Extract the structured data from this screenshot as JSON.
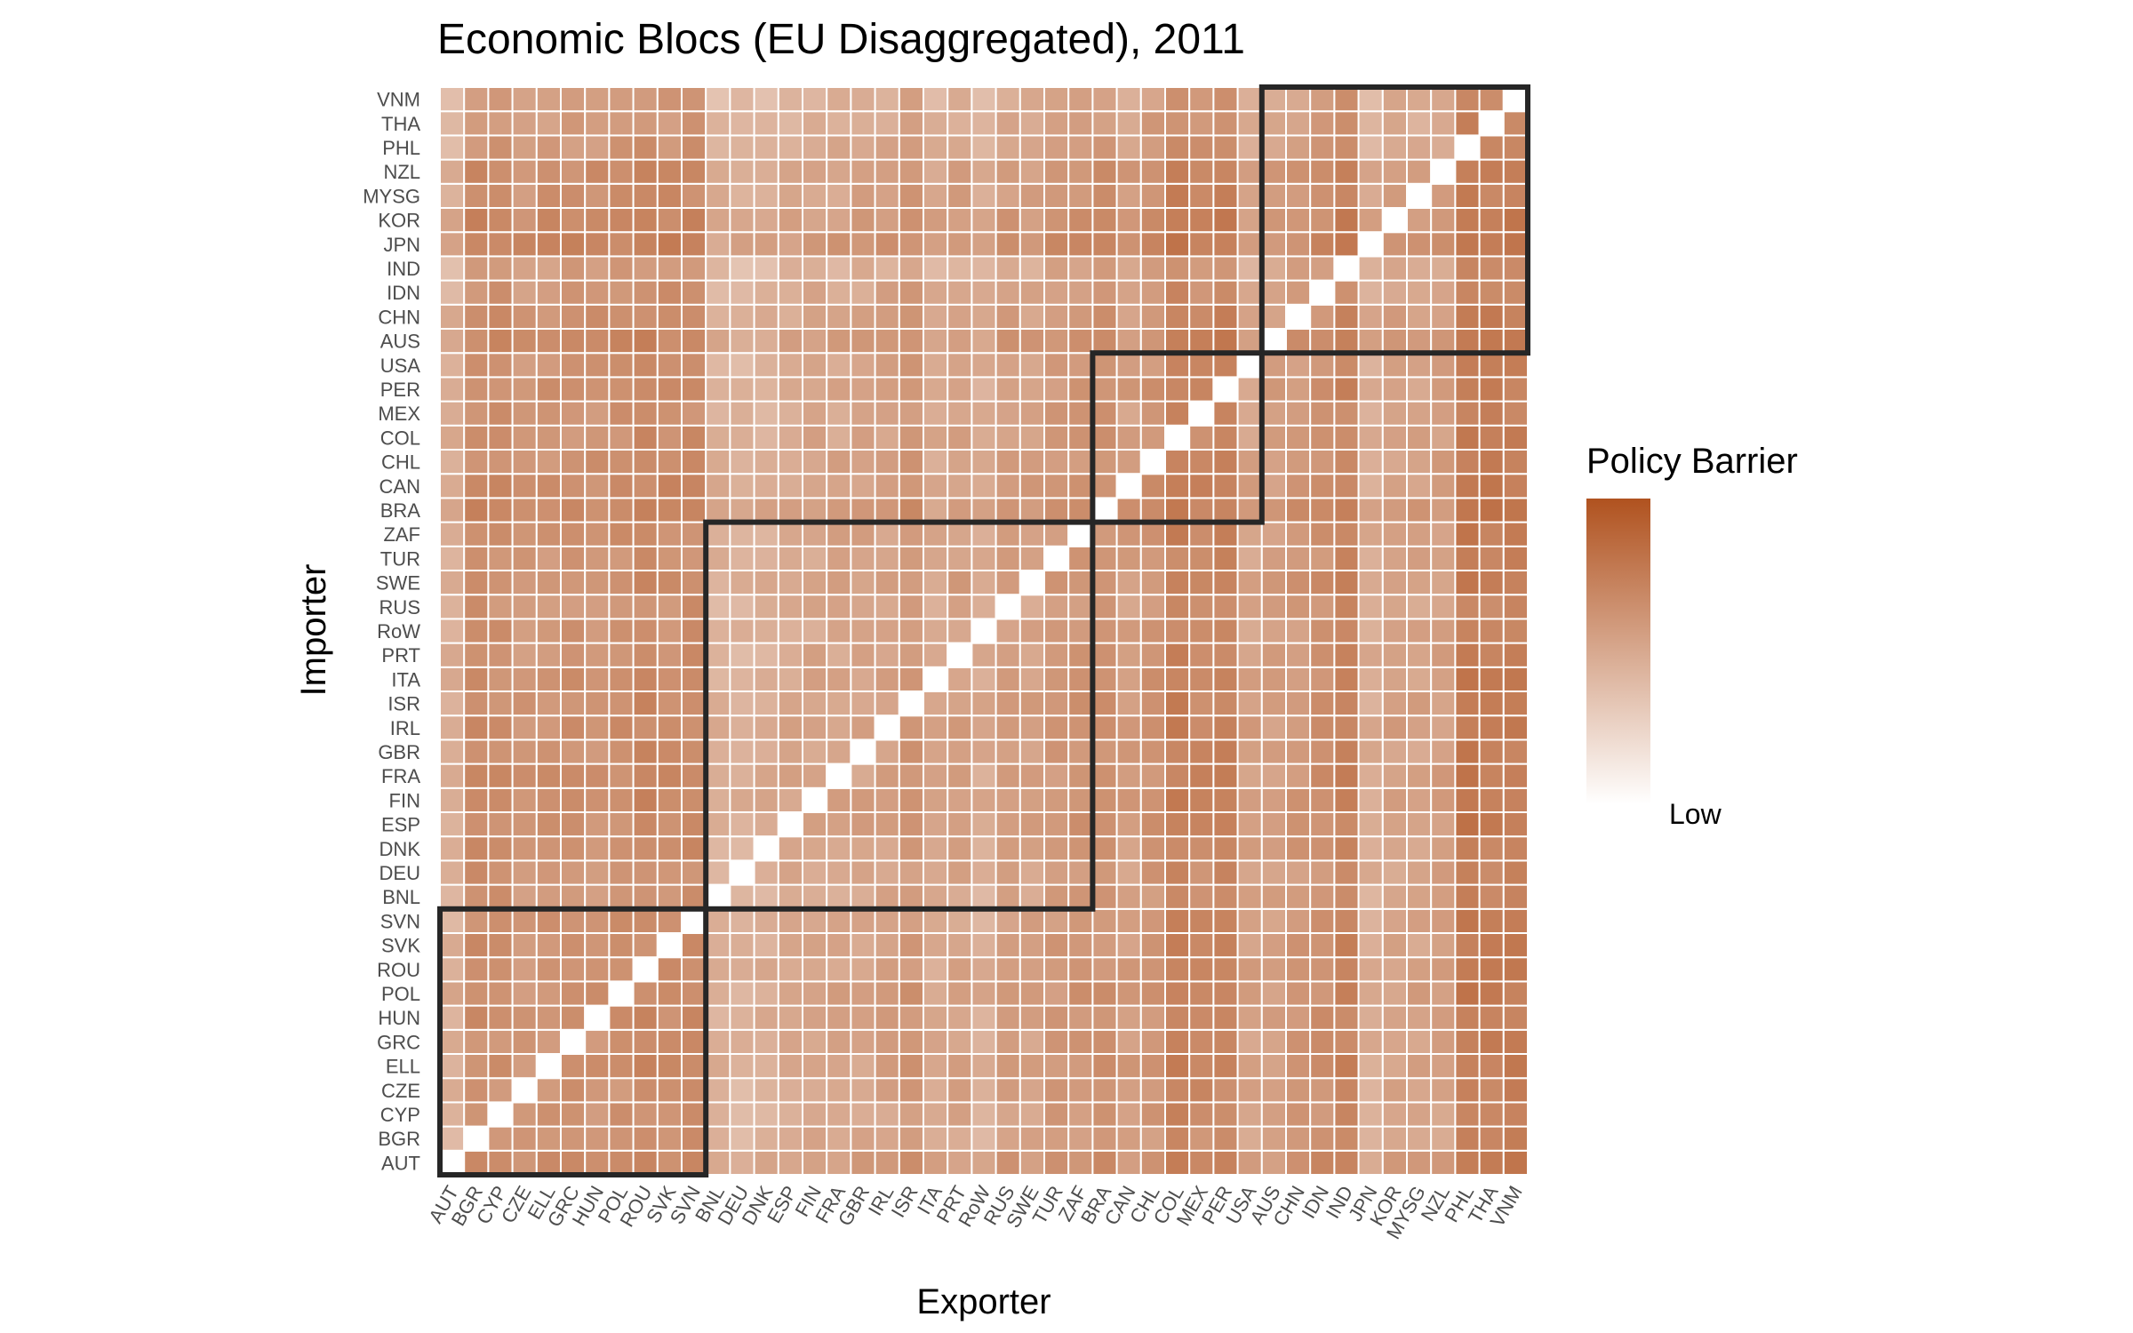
{
  "chart_data": {
    "type": "heatmap",
    "title": "Economic Blocs (EU Disaggregated), 2011",
    "xlabel": "Exporter",
    "ylabel": "Importer",
    "legend": {
      "title": "Policy Barrier",
      "low_label": "Low",
      "placement": "right"
    },
    "colors": {
      "low": "#ffffff",
      "high": "#b0521f",
      "cell_border": "#ffffff",
      "bloc_outline": "#262626"
    },
    "countries": [
      "AUT",
      "BGR",
      "CYP",
      "CZE",
      "ELL",
      "GRC",
      "HUN",
      "POL",
      "ROU",
      "SVK",
      "SVN",
      "BNL",
      "DEU",
      "DNK",
      "ESP",
      "FIN",
      "FRA",
      "GBR",
      "IRL",
      "ISR",
      "ITA",
      "PRT",
      "RoW",
      "RUS",
      "SWE",
      "TUR",
      "ZAF",
      "BRA",
      "CAN",
      "CHL",
      "COL",
      "MEX",
      "PER",
      "USA",
      "AUS",
      "CHN",
      "IDN",
      "IND",
      "JPN",
      "KOR",
      "MYSG",
      "NZL",
      "PHL",
      "THA",
      "VNM"
    ],
    "exporter_profile": [
      0.35,
      0.68,
      0.66,
      0.58,
      0.62,
      0.64,
      0.62,
      0.66,
      0.72,
      0.68,
      0.7,
      0.33,
      0.3,
      0.34,
      0.4,
      0.44,
      0.44,
      0.45,
      0.48,
      0.58,
      0.4,
      0.48,
      0.36,
      0.52,
      0.48,
      0.56,
      0.6,
      0.62,
      0.52,
      0.62,
      0.8,
      0.72,
      0.78,
      0.48,
      0.5,
      0.58,
      0.64,
      0.78,
      0.36,
      0.48,
      0.46,
      0.5,
      0.88,
      0.82,
      0.84
    ],
    "importer_profile": [
      0.68,
      0.55,
      0.58,
      0.58,
      0.62,
      0.6,
      0.62,
      0.64,
      0.62,
      0.6,
      0.58,
      0.56,
      0.58,
      0.62,
      0.64,
      0.66,
      0.64,
      0.62,
      0.64,
      0.64,
      0.62,
      0.6,
      0.58,
      0.56,
      0.64,
      0.58,
      0.62,
      0.72,
      0.66,
      0.62,
      0.6,
      0.58,
      0.62,
      0.58,
      0.7,
      0.62,
      0.56,
      0.46,
      0.76,
      0.7,
      0.62,
      0.66,
      0.52,
      0.48,
      0.46
    ],
    "blocs": [
      {
        "from": "AUT",
        "to": "SVN"
      },
      {
        "from": "BNL",
        "to": "ZAF"
      },
      {
        "from": "BRA",
        "to": "USA"
      },
      {
        "from": "AUS",
        "to": "VNM"
      }
    ],
    "diagonal": "blank",
    "scale": "relative (Low to High)"
  }
}
